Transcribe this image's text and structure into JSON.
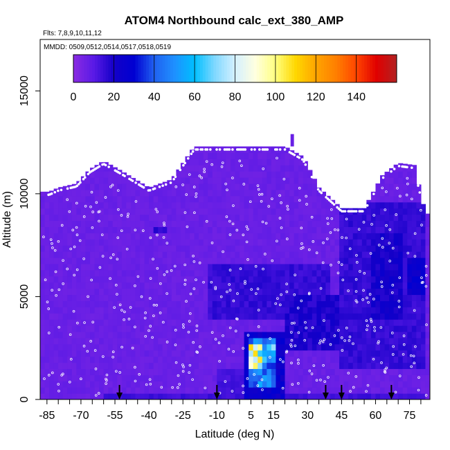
{
  "chart_data": {
    "type": "heatmap",
    "title": "ATOM4 Northbound calc_ext_380_AMP",
    "flights_note": "Flts: 7,8,9,10,11,12",
    "dates_note": "MMDD: 0509,0512,0514,0517,0518,0519",
    "xlabel": "Latitude (deg N)",
    "ylabel": "Altitude (m)",
    "xlim": [
      -88,
      84
    ],
    "ylim": [
      0,
      17500
    ],
    "x_ticks": [
      -85,
      -70,
      -55,
      -40,
      -25,
      -10,
      5,
      15,
      30,
      45,
      60,
      75
    ],
    "x_tick_labels": [
      "-85",
      "-70",
      "-55",
      "-40",
      "-25",
      "-10",
      "5",
      "15",
      "30",
      "45",
      "60",
      "75"
    ],
    "y_ticks": [
      0,
      5000,
      10000,
      15000
    ],
    "y_tick_labels": [
      "0",
      "5000",
      "10000",
      "15000"
    ],
    "colorbar": {
      "range": [
        0,
        160
      ],
      "ticks": [
        0,
        20,
        40,
        60,
        80,
        100,
        120,
        140
      ],
      "tick_labels": [
        "0",
        "20",
        "40",
        "60",
        "80",
        "100",
        "120",
        "140"
      ],
      "colors": [
        "#8a2be2",
        "#5a1ae6",
        "#1400c8",
        "#0000d2",
        "#2060f0",
        "#1e90ff",
        "#00bfff",
        "#80d8ff",
        "#d4f0ff",
        "#ffffe0",
        "#ffff80",
        "#ffd700",
        "#ffa500",
        "#ff7f00",
        "#ff4500",
        "#e00000",
        "#b22222"
      ]
    },
    "background_value": 7,
    "sounding_arrows_lat": [
      -53,
      -10,
      38,
      45,
      67
    ],
    "ceiling_profile": [
      {
        "lat": -88,
        "alt": 10100
      },
      {
        "lat": -84,
        "alt": 10100
      },
      {
        "lat": -80,
        "alt": 10300
      },
      {
        "lat": -72,
        "alt": 10500
      },
      {
        "lat": -66,
        "alt": 11200
      },
      {
        "lat": -60,
        "alt": 11600
      },
      {
        "lat": -52,
        "alt": 11100
      },
      {
        "lat": -40,
        "alt": 10300
      },
      {
        "lat": -30,
        "alt": 10700
      },
      {
        "lat": -20,
        "alt": 12300
      },
      {
        "lat": 20,
        "alt": 12300
      },
      {
        "lat": 28,
        "alt": 11800
      },
      {
        "lat": 35,
        "alt": 10300
      },
      {
        "lat": 45,
        "alt": 9300
      },
      {
        "lat": 55,
        "alt": 9300
      },
      {
        "lat": 63,
        "alt": 10900
      },
      {
        "lat": 70,
        "alt": 11500
      },
      {
        "lat": 77,
        "alt": 11400
      },
      {
        "lat": 81,
        "alt": 9500
      },
      {
        "lat": 84,
        "alt": 8800
      }
    ],
    "features": [
      {
        "lat0": 2,
        "lat1": 19,
        "alt0": 0,
        "alt1": 3200,
        "value": 30
      },
      {
        "lat0": 4,
        "lat1": 16,
        "alt0": 500,
        "alt1": 3000,
        "value": 55
      },
      {
        "lat0": 4,
        "lat1": 10,
        "alt0": 1500,
        "alt1": 2600,
        "value": 110
      },
      {
        "lat0": 10,
        "lat1": 16,
        "alt0": 1800,
        "alt1": 2600,
        "value": 75
      },
      {
        "lat0": 8,
        "lat1": 12,
        "alt0": 500,
        "alt1": 1200,
        "value": 65
      },
      {
        "lat0": -14,
        "lat1": 40,
        "alt0": 3800,
        "alt1": 6500,
        "value": 18
      },
      {
        "lat0": 20,
        "lat1": 44,
        "alt0": 2500,
        "alt1": 5000,
        "value": 22
      },
      {
        "lat0": 44,
        "lat1": 82,
        "alt0": 1500,
        "alt1": 9500,
        "value": 18
      },
      {
        "lat0": 58,
        "lat1": 72,
        "alt0": 4000,
        "alt1": 8000,
        "value": 25
      },
      {
        "lat0": 74,
        "lat1": 82,
        "alt0": 5000,
        "alt1": 7000,
        "value": 30
      },
      {
        "lat0": -38,
        "lat1": -32,
        "alt0": 8000,
        "alt1": 8500,
        "value": 20
      },
      {
        "lat0": -60,
        "lat1": 82,
        "alt0": 0,
        "alt1": 300,
        "value": 16
      },
      {
        "lat0": -10,
        "lat1": 2,
        "alt0": 0,
        "alt1": 1500,
        "value": 15
      }
    ]
  }
}
